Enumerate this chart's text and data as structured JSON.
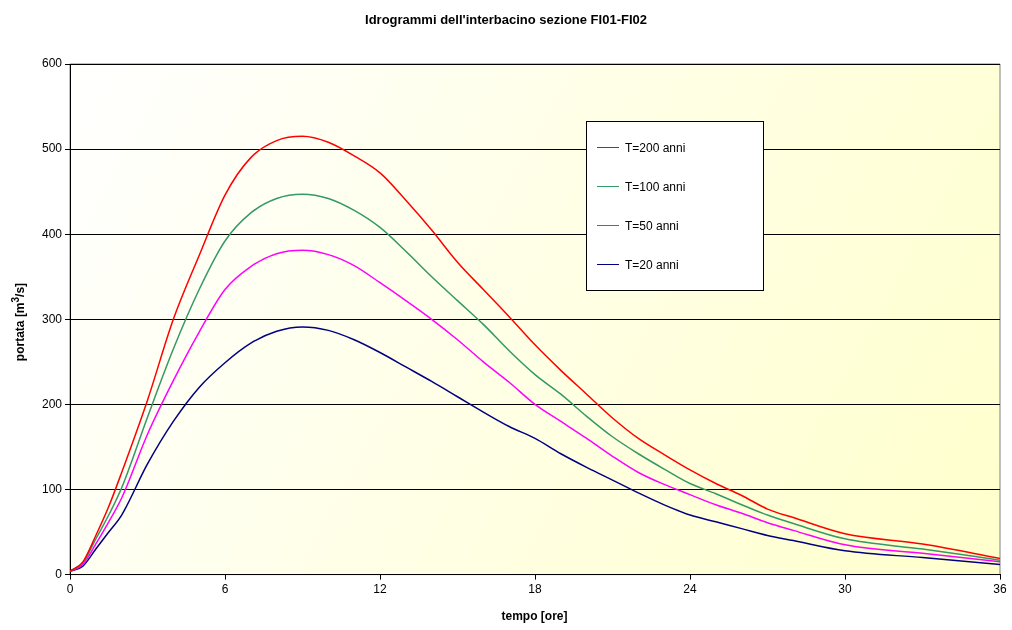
{
  "chart_data": {
    "type": "line",
    "title": "Idrogrammi dell'interbacino sezione FI01-FI02",
    "xlabel": "tempo [ore]",
    "ylabel": "portata [m$^{3}$/s]",
    "x": [
      0,
      0.5,
      1,
      1.5,
      2,
      3,
      4,
      5,
      6,
      7,
      8,
      9,
      10,
      11,
      12,
      13,
      14,
      15,
      16,
      17,
      18,
      19,
      20,
      21,
      22,
      23,
      24,
      25,
      26,
      27,
      28,
      30,
      33,
      36
    ],
    "series": [
      {
        "name": "T=200 anni",
        "color": "#ff0000",
        "values": [
          4,
          15,
          46,
          80,
          120,
          205,
          300,
          375,
          446,
          490,
          510,
          515,
          508,
          492,
          472,
          440,
          405,
          367,
          335,
          303,
          270,
          240,
          212,
          184,
          160,
          141,
          123,
          107,
          93,
          77,
          67,
          48,
          36,
          19
        ]
      },
      {
        "name": "T=100 anni",
        "color": "#339966",
        "values": [
          4,
          14,
          42,
          70,
          102,
          185,
          265,
          335,
          392,
          425,
          442,
          447,
          442,
          428,
          408,
          380,
          350,
          322,
          294,
          263,
          235,
          212,
          186,
          162,
          142,
          124,
          107,
          95,
          82,
          70,
          60,
          42,
          30,
          17
        ]
      },
      {
        "name": "T=50 anni",
        "color": "#ff00ff",
        "values": [
          4,
          12,
          36,
          62,
          90,
          165,
          228,
          285,
          335,
          362,
          377,
          381,
          376,
          363,
          343,
          322,
          300,
          276,
          250,
          226,
          200,
          180,
          160,
          139,
          120,
          106,
          94,
          82,
          72,
          61,
          52,
          35,
          25,
          15
        ]
      },
      {
        "name": "T=20 anni",
        "color": "#000080",
        "values": [
          4,
          10,
          30,
          50,
          70,
          130,
          180,
          220,
          249,
          272,
          286,
          291,
          287,
          276,
          261,
          244,
          227,
          209,
          191,
          174,
          160,
          142,
          126,
          111,
          96,
          82,
          70,
          62,
          54,
          46,
          40,
          28,
          20,
          12
        ]
      }
    ],
    "xlim": [
      0,
      36
    ],
    "xticks": [
      0,
      6,
      12,
      18,
      24,
      30,
      36
    ],
    "ylim": [
      0,
      600
    ],
    "yticks": [
      0,
      100,
      200,
      300,
      400,
      500,
      600
    ],
    "grid": "y",
    "legend": "top right",
    "marker": "none",
    "line_style": "solid"
  }
}
